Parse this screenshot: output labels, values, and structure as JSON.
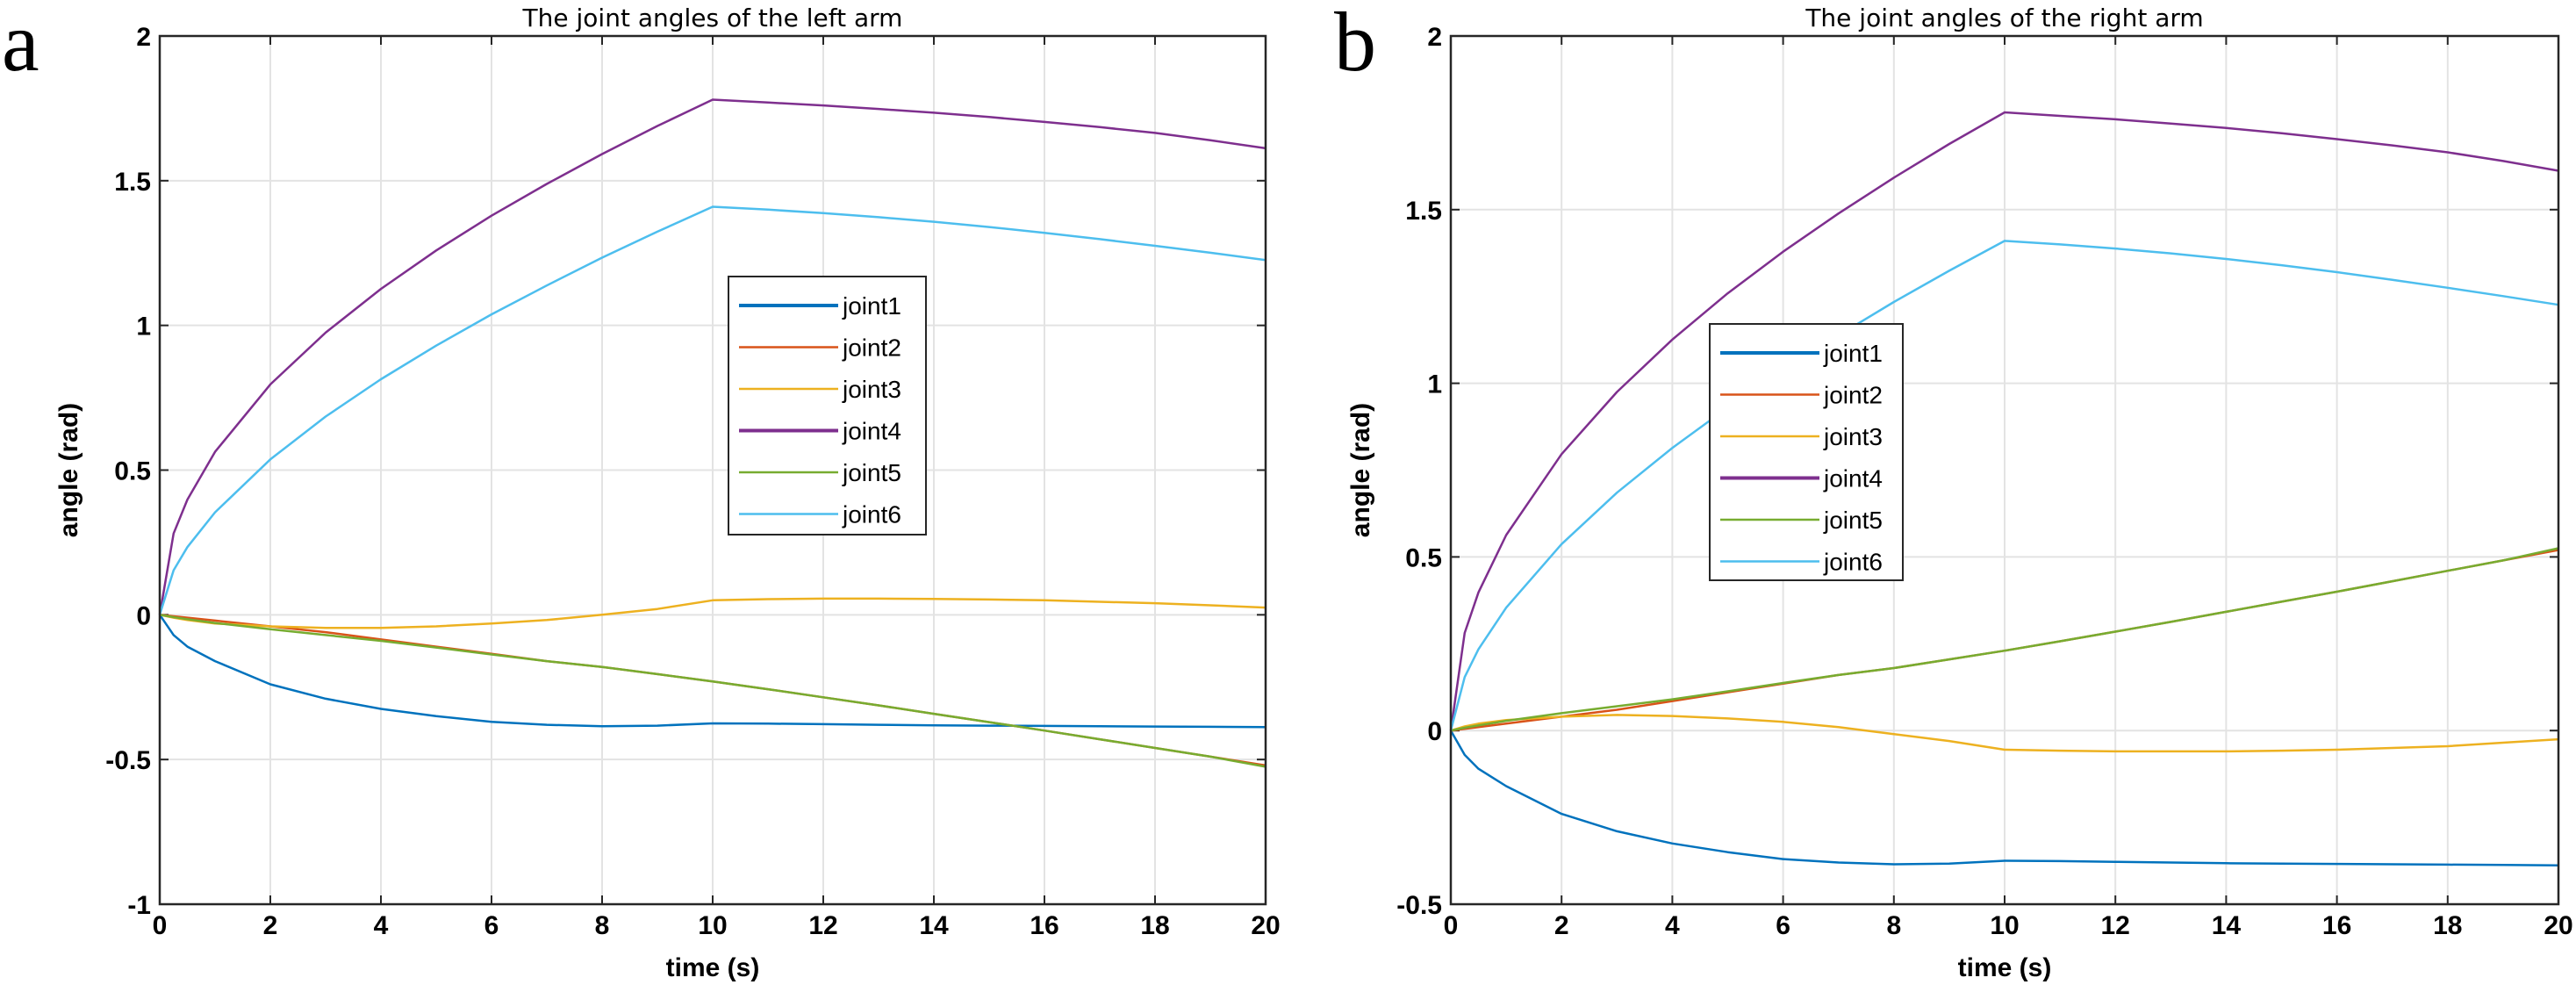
{
  "chart_data": [
    {
      "panel": "a",
      "type": "line",
      "title": "The joint angles of the left arm",
      "xlabel": "time (s)",
      "ylabel": "angle (rad)",
      "xlim": [
        0,
        20
      ],
      "ylim": [
        -1,
        2
      ],
      "xticks": [
        0,
        2,
        4,
        6,
        8,
        10,
        12,
        14,
        16,
        18,
        20
      ],
      "yticks": [
        -1,
        -0.5,
        0,
        0.5,
        1,
        1.5,
        2
      ],
      "ytick_labels": [
        "-1",
        "-0.5",
        "0",
        "0.5",
        "1",
        "1.5",
        "2"
      ],
      "grid": true,
      "legend_position": "center",
      "x": [
        0,
        0.25,
        0.5,
        1,
        2,
        3,
        4,
        5,
        6,
        7,
        8,
        9,
        10,
        11,
        12,
        13,
        14,
        15,
        16,
        17,
        18,
        19,
        20
      ],
      "series": [
        {
          "name": "joint1",
          "color": "#0072BD",
          "values": [
            0,
            -0.07,
            -0.11,
            -0.16,
            -0.24,
            -0.29,
            -0.325,
            -0.35,
            -0.37,
            -0.38,
            -0.385,
            -0.383,
            -0.375,
            -0.376,
            -0.378,
            -0.38,
            -0.382,
            -0.383,
            -0.384,
            -0.385,
            -0.386,
            -0.387,
            -0.388
          ]
        },
        {
          "name": "joint2",
          "color": "#D95319",
          "values": [
            0,
            -0.005,
            -0.01,
            -0.02,
            -0.04,
            -0.06,
            -0.085,
            -0.11,
            -0.135,
            -0.16,
            -0.18,
            -0.205,
            -0.23,
            -0.257,
            -0.285,
            -0.313,
            -0.342,
            -0.371,
            -0.4,
            -0.43,
            -0.46,
            -0.49,
            -0.52
          ]
        },
        {
          "name": "joint3",
          "color": "#EDB120",
          "values": [
            0,
            -0.01,
            -0.018,
            -0.03,
            -0.04,
            -0.045,
            -0.045,
            -0.04,
            -0.03,
            -0.018,
            0,
            0.02,
            0.05,
            0.054,
            0.056,
            0.056,
            0.055,
            0.053,
            0.05,
            0.045,
            0.04,
            0.033,
            0.025
          ]
        },
        {
          "name": "joint4",
          "color": "#7E2F8E",
          "values": [
            0,
            0.281,
            0.398,
            0.563,
            0.796,
            0.975,
            1.126,
            1.259,
            1.379,
            1.489,
            1.592,
            1.689,
            1.78,
            1.77,
            1.76,
            1.748,
            1.735,
            1.72,
            1.703,
            1.685,
            1.665,
            1.64,
            1.612
          ]
        },
        {
          "name": "joint5",
          "color": "#77AC30",
          "values": [
            0,
            -0.008,
            -0.015,
            -0.028,
            -0.05,
            -0.07,
            -0.09,
            -0.113,
            -0.137,
            -0.16,
            -0.18,
            -0.205,
            -0.23,
            -0.257,
            -0.285,
            -0.313,
            -0.342,
            -0.371,
            -0.4,
            -0.43,
            -0.46,
            -0.49,
            -0.525
          ]
        },
        {
          "name": "joint6",
          "color": "#4DBEEE",
          "values": [
            0,
            0.154,
            0.234,
            0.354,
            0.537,
            0.685,
            0.814,
            0.93,
            1.038,
            1.138,
            1.234,
            1.324,
            1.41,
            1.4,
            1.388,
            1.374,
            1.358,
            1.34,
            1.32,
            1.298,
            1.275,
            1.251,
            1.226
          ]
        }
      ]
    },
    {
      "panel": "b",
      "type": "line",
      "title": "The joint angles of the right arm",
      "xlabel": "time (s)",
      "ylabel": "angle (rad)",
      "xlim": [
        0,
        20
      ],
      "ylim": [
        -0.5,
        2
      ],
      "xticks": [
        0,
        2,
        4,
        6,
        8,
        10,
        12,
        14,
        16,
        18,
        20
      ],
      "yticks": [
        -0.5,
        0,
        0.5,
        1,
        1.5,
        2
      ],
      "ytick_labels": [
        "-0.5",
        "0",
        "0.5",
        "1",
        "1.5",
        "2"
      ],
      "grid": true,
      "legend_position": "center",
      "x": [
        0,
        0.25,
        0.5,
        1,
        2,
        3,
        4,
        5,
        6,
        7,
        8,
        9,
        10,
        11,
        12,
        13,
        14,
        15,
        16,
        17,
        18,
        19,
        20
      ],
      "series": [
        {
          "name": "joint1",
          "color": "#0072BD",
          "values": [
            0,
            -0.07,
            -0.11,
            -0.16,
            -0.24,
            -0.29,
            -0.325,
            -0.35,
            -0.37,
            -0.38,
            -0.385,
            -0.383,
            -0.375,
            -0.376,
            -0.378,
            -0.38,
            -0.382,
            -0.383,
            -0.384,
            -0.385,
            -0.386,
            -0.387,
            -0.388
          ]
        },
        {
          "name": "joint2",
          "color": "#D95319",
          "values": [
            0,
            0.005,
            0.01,
            0.02,
            0.04,
            0.06,
            0.085,
            0.11,
            0.135,
            0.16,
            0.18,
            0.205,
            0.23,
            0.257,
            0.285,
            0.313,
            0.342,
            0.371,
            0.4,
            0.43,
            0.46,
            0.49,
            0.52
          ]
        },
        {
          "name": "joint3",
          "color": "#EDB120",
          "values": [
            0,
            0.012,
            0.02,
            0.03,
            0.04,
            0.045,
            0.042,
            0.035,
            0.025,
            0.01,
            -0.01,
            -0.03,
            -0.055,
            -0.058,
            -0.06,
            -0.06,
            -0.06,
            -0.058,
            -0.055,
            -0.05,
            -0.045,
            -0.035,
            -0.025
          ]
        },
        {
          "name": "joint4",
          "color": "#7E2F8E",
          "values": [
            0,
            0.281,
            0.398,
            0.563,
            0.796,
            0.975,
            1.126,
            1.259,
            1.379,
            1.489,
            1.592,
            1.689,
            1.78,
            1.77,
            1.76,
            1.748,
            1.735,
            1.72,
            1.703,
            1.685,
            1.665,
            1.64,
            1.612
          ]
        },
        {
          "name": "joint5",
          "color": "#77AC30",
          "values": [
            0,
            0.008,
            0.015,
            0.028,
            0.05,
            0.07,
            0.09,
            0.113,
            0.137,
            0.16,
            0.18,
            0.205,
            0.23,
            0.257,
            0.285,
            0.313,
            0.342,
            0.371,
            0.4,
            0.43,
            0.46,
            0.49,
            0.525
          ]
        },
        {
          "name": "joint6",
          "color": "#4DBEEE",
          "values": [
            0,
            0.154,
            0.234,
            0.354,
            0.537,
            0.685,
            0.814,
            0.93,
            1.038,
            1.138,
            1.234,
            1.324,
            1.41,
            1.4,
            1.388,
            1.374,
            1.358,
            1.34,
            1.32,
            1.298,
            1.275,
            1.251,
            1.226
          ]
        }
      ]
    }
  ]
}
